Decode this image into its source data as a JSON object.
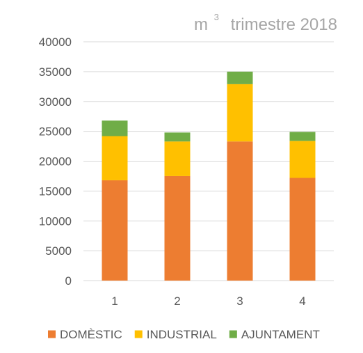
{
  "chart_data": {
    "type": "bar",
    "stacked": true,
    "title": {
      "base": "m",
      "superscript": "3",
      "rest": "trimestre 2018"
    },
    "categories": [
      "1",
      "2",
      "3",
      "4"
    ],
    "series": [
      {
        "name": "DOMÈSTIC",
        "color": "#ed7d31",
        "values": [
          16800,
          17500,
          23300,
          17200
        ]
      },
      {
        "name": "INDUSTRIAL",
        "color": "#ffc000",
        "values": [
          7400,
          5800,
          9600,
          6200
        ]
      },
      {
        "name": "AJUNTAMENT",
        "color": "#70ad47",
        "values": [
          2600,
          1500,
          2100,
          1500
        ]
      }
    ],
    "ylim": [
      0,
      40000
    ],
    "yticks": [
      0,
      5000,
      10000,
      15000,
      20000,
      25000,
      30000,
      35000,
      40000
    ],
    "grid": true,
    "legend_position": "bottom",
    "xlabel": "",
    "ylabel": ""
  }
}
